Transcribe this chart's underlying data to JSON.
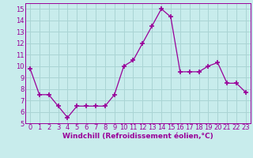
{
  "x": [
    0,
    1,
    2,
    3,
    4,
    5,
    6,
    7,
    8,
    9,
    10,
    11,
    12,
    13,
    14,
    15,
    16,
    17,
    18,
    19,
    20,
    21,
    22,
    23
  ],
  "y": [
    9.8,
    7.5,
    7.5,
    6.5,
    5.5,
    6.5,
    6.5,
    6.5,
    6.5,
    7.5,
    10.0,
    10.5,
    12.0,
    13.5,
    15.0,
    14.3,
    9.5,
    9.5,
    9.5,
    10.0,
    10.3,
    8.5,
    8.5,
    7.7
  ],
  "line_color": "#990099",
  "marker": "+",
  "marker_size": 4,
  "bg_color": "#c8ecec",
  "grid_color": "#aad4d4",
  "xlabel": "Windchill (Refroidissement éolien,°C)",
  "ylabel_ticks": [
    5,
    6,
    7,
    8,
    9,
    10,
    11,
    12,
    13,
    14,
    15
  ],
  "xlim": [
    -0.5,
    23.5
  ],
  "ylim": [
    5,
    15.5
  ],
  "xlabel_fontsize": 6.5,
  "tick_fontsize": 6.0
}
